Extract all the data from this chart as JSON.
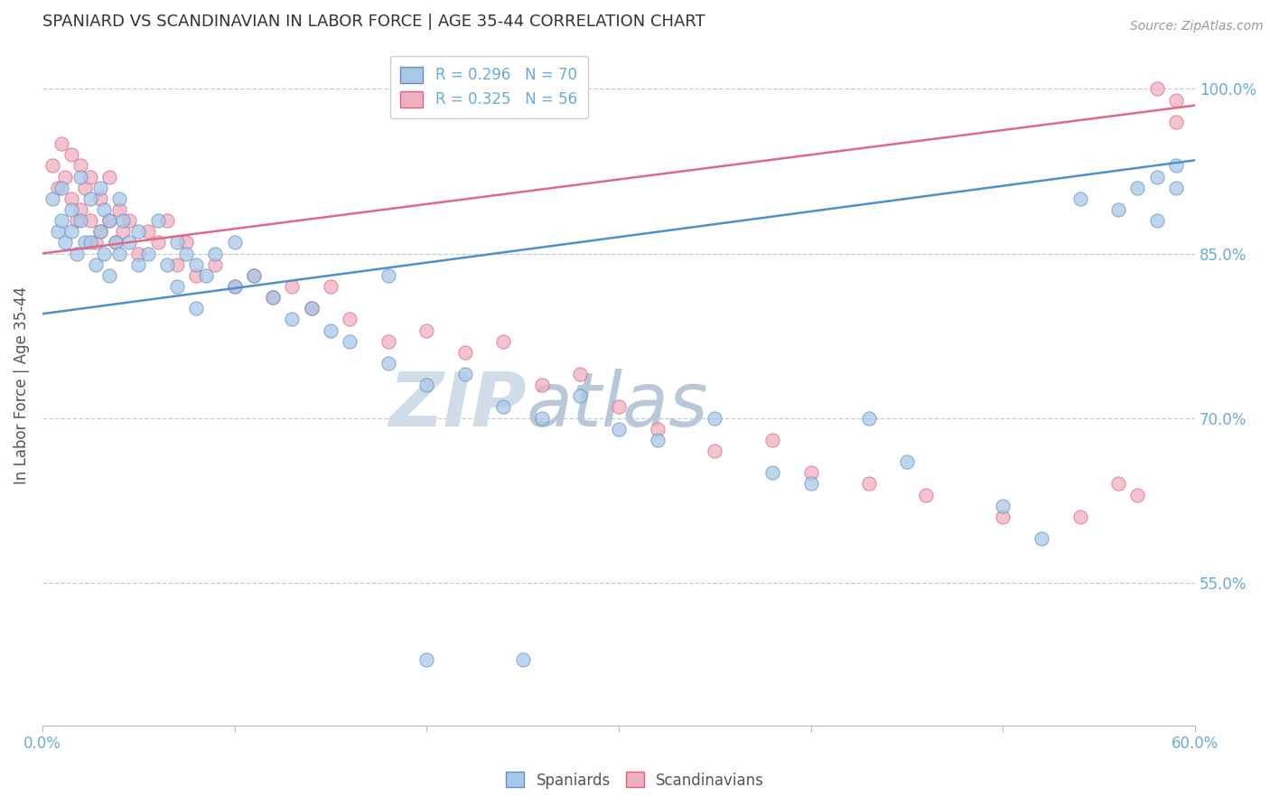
{
  "title": "SPANIARD VS SCANDINAVIAN IN LABOR FORCE | AGE 35-44 CORRELATION CHART",
  "source_text": "Source: ZipAtlas.com",
  "ylabel": "In Labor Force | Age 35-44",
  "xlim": [
    0.0,
    0.6
  ],
  "ylim": [
    0.42,
    1.04
  ],
  "xticks": [
    0.0,
    0.1,
    0.2,
    0.3,
    0.4,
    0.5,
    0.6
  ],
  "xticklabels": [
    "0.0%",
    "",
    "",
    "",
    "",
    "",
    "60.0%"
  ],
  "ytick_positions": [
    0.55,
    0.7,
    0.85,
    1.0
  ],
  "ytick_labels": [
    "55.0%",
    "70.0%",
    "85.0%",
    "100.0%"
  ],
  "blue_R": 0.296,
  "blue_N": 70,
  "pink_R": 0.325,
  "pink_N": 56,
  "blue_color": "#A8C8E8",
  "pink_color": "#F0B0C0",
  "blue_edge_color": "#6090C0",
  "pink_edge_color": "#E06080",
  "blue_line_color": "#5090C8",
  "pink_line_color": "#E06888",
  "legend_label_blue": "Spaniards",
  "legend_label_pink": "Scandinavians",
  "title_color": "#333333",
  "axis_tick_color": "#6AAAD8",
  "grid_color": "#C0CDD8",
  "watermark_color": "#D0DCE8",
  "blue_x": [
    0.005,
    0.008,
    0.01,
    0.01,
    0.012,
    0.015,
    0.015,
    0.018,
    0.02,
    0.02,
    0.022,
    0.025,
    0.025,
    0.028,
    0.03,
    0.03,
    0.032,
    0.032,
    0.035,
    0.035,
    0.038,
    0.04,
    0.04,
    0.042,
    0.045,
    0.05,
    0.05,
    0.055,
    0.06,
    0.065,
    0.07,
    0.07,
    0.075,
    0.08,
    0.08,
    0.085,
    0.09,
    0.1,
    0.1,
    0.11,
    0.12,
    0.13,
    0.14,
    0.15,
    0.16,
    0.18,
    0.2,
    0.22,
    0.24,
    0.26,
    0.28,
    0.3,
    0.32,
    0.35,
    0.38,
    0.4,
    0.43,
    0.45,
    0.5,
    0.52,
    0.54,
    0.56,
    0.57,
    0.58,
    0.58,
    0.59,
    0.59,
    0.2,
    0.25,
    0.18
  ],
  "blue_y": [
    0.9,
    0.87,
    0.91,
    0.88,
    0.86,
    0.89,
    0.87,
    0.85,
    0.92,
    0.88,
    0.86,
    0.9,
    0.86,
    0.84,
    0.91,
    0.87,
    0.89,
    0.85,
    0.88,
    0.83,
    0.86,
    0.9,
    0.85,
    0.88,
    0.86,
    0.84,
    0.87,
    0.85,
    0.88,
    0.84,
    0.86,
    0.82,
    0.85,
    0.84,
    0.8,
    0.83,
    0.85,
    0.82,
    0.86,
    0.83,
    0.81,
    0.79,
    0.8,
    0.78,
    0.77,
    0.75,
    0.73,
    0.74,
    0.71,
    0.7,
    0.72,
    0.69,
    0.68,
    0.7,
    0.65,
    0.64,
    0.7,
    0.66,
    0.62,
    0.59,
    0.9,
    0.89,
    0.91,
    0.92,
    0.88,
    0.93,
    0.91,
    0.48,
    0.48,
    0.83
  ],
  "pink_x": [
    0.005,
    0.008,
    0.01,
    0.012,
    0.015,
    0.015,
    0.018,
    0.02,
    0.02,
    0.022,
    0.025,
    0.025,
    0.028,
    0.03,
    0.03,
    0.035,
    0.035,
    0.038,
    0.04,
    0.042,
    0.045,
    0.05,
    0.055,
    0.06,
    0.065,
    0.07,
    0.075,
    0.08,
    0.09,
    0.1,
    0.11,
    0.12,
    0.13,
    0.14,
    0.15,
    0.16,
    0.18,
    0.2,
    0.22,
    0.24,
    0.26,
    0.28,
    0.3,
    0.32,
    0.35,
    0.38,
    0.4,
    0.43,
    0.46,
    0.5,
    0.54,
    0.56,
    0.57,
    0.58,
    0.59,
    0.59
  ],
  "pink_y": [
    0.93,
    0.91,
    0.95,
    0.92,
    0.94,
    0.9,
    0.88,
    0.93,
    0.89,
    0.91,
    0.92,
    0.88,
    0.86,
    0.9,
    0.87,
    0.92,
    0.88,
    0.86,
    0.89,
    0.87,
    0.88,
    0.85,
    0.87,
    0.86,
    0.88,
    0.84,
    0.86,
    0.83,
    0.84,
    0.82,
    0.83,
    0.81,
    0.82,
    0.8,
    0.82,
    0.79,
    0.77,
    0.78,
    0.76,
    0.77,
    0.73,
    0.74,
    0.71,
    0.69,
    0.67,
    0.68,
    0.65,
    0.64,
    0.63,
    0.61,
    0.61,
    0.64,
    0.63,
    1.0,
    0.99,
    0.97
  ]
}
